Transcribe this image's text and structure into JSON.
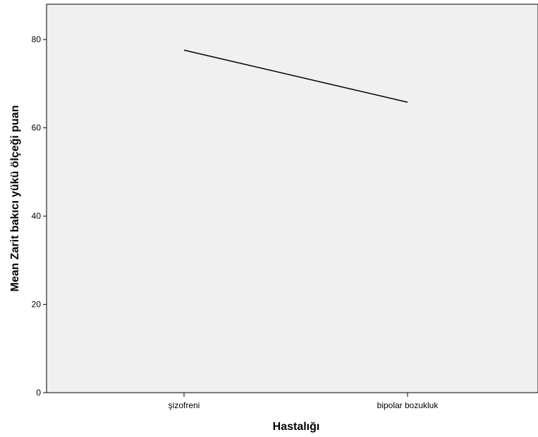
{
  "chart_data": {
    "type": "line",
    "title": "",
    "xlabel": "Hastalığı",
    "ylabel": "Mean Zarit bakıcı yükü ölçeği puan",
    "categories": [
      "şizofreni",
      "bipolar bozukluk"
    ],
    "series": [
      {
        "values": [
          77.6,
          65.8
        ]
      }
    ],
    "ylim": [
      0,
      88
    ],
    "yticks": [
      0,
      20,
      40,
      60,
      80
    ],
    "grid": false,
    "colors": {
      "plot_background": "#f0f0f0",
      "line": "#000000",
      "axis": "#000000"
    }
  }
}
